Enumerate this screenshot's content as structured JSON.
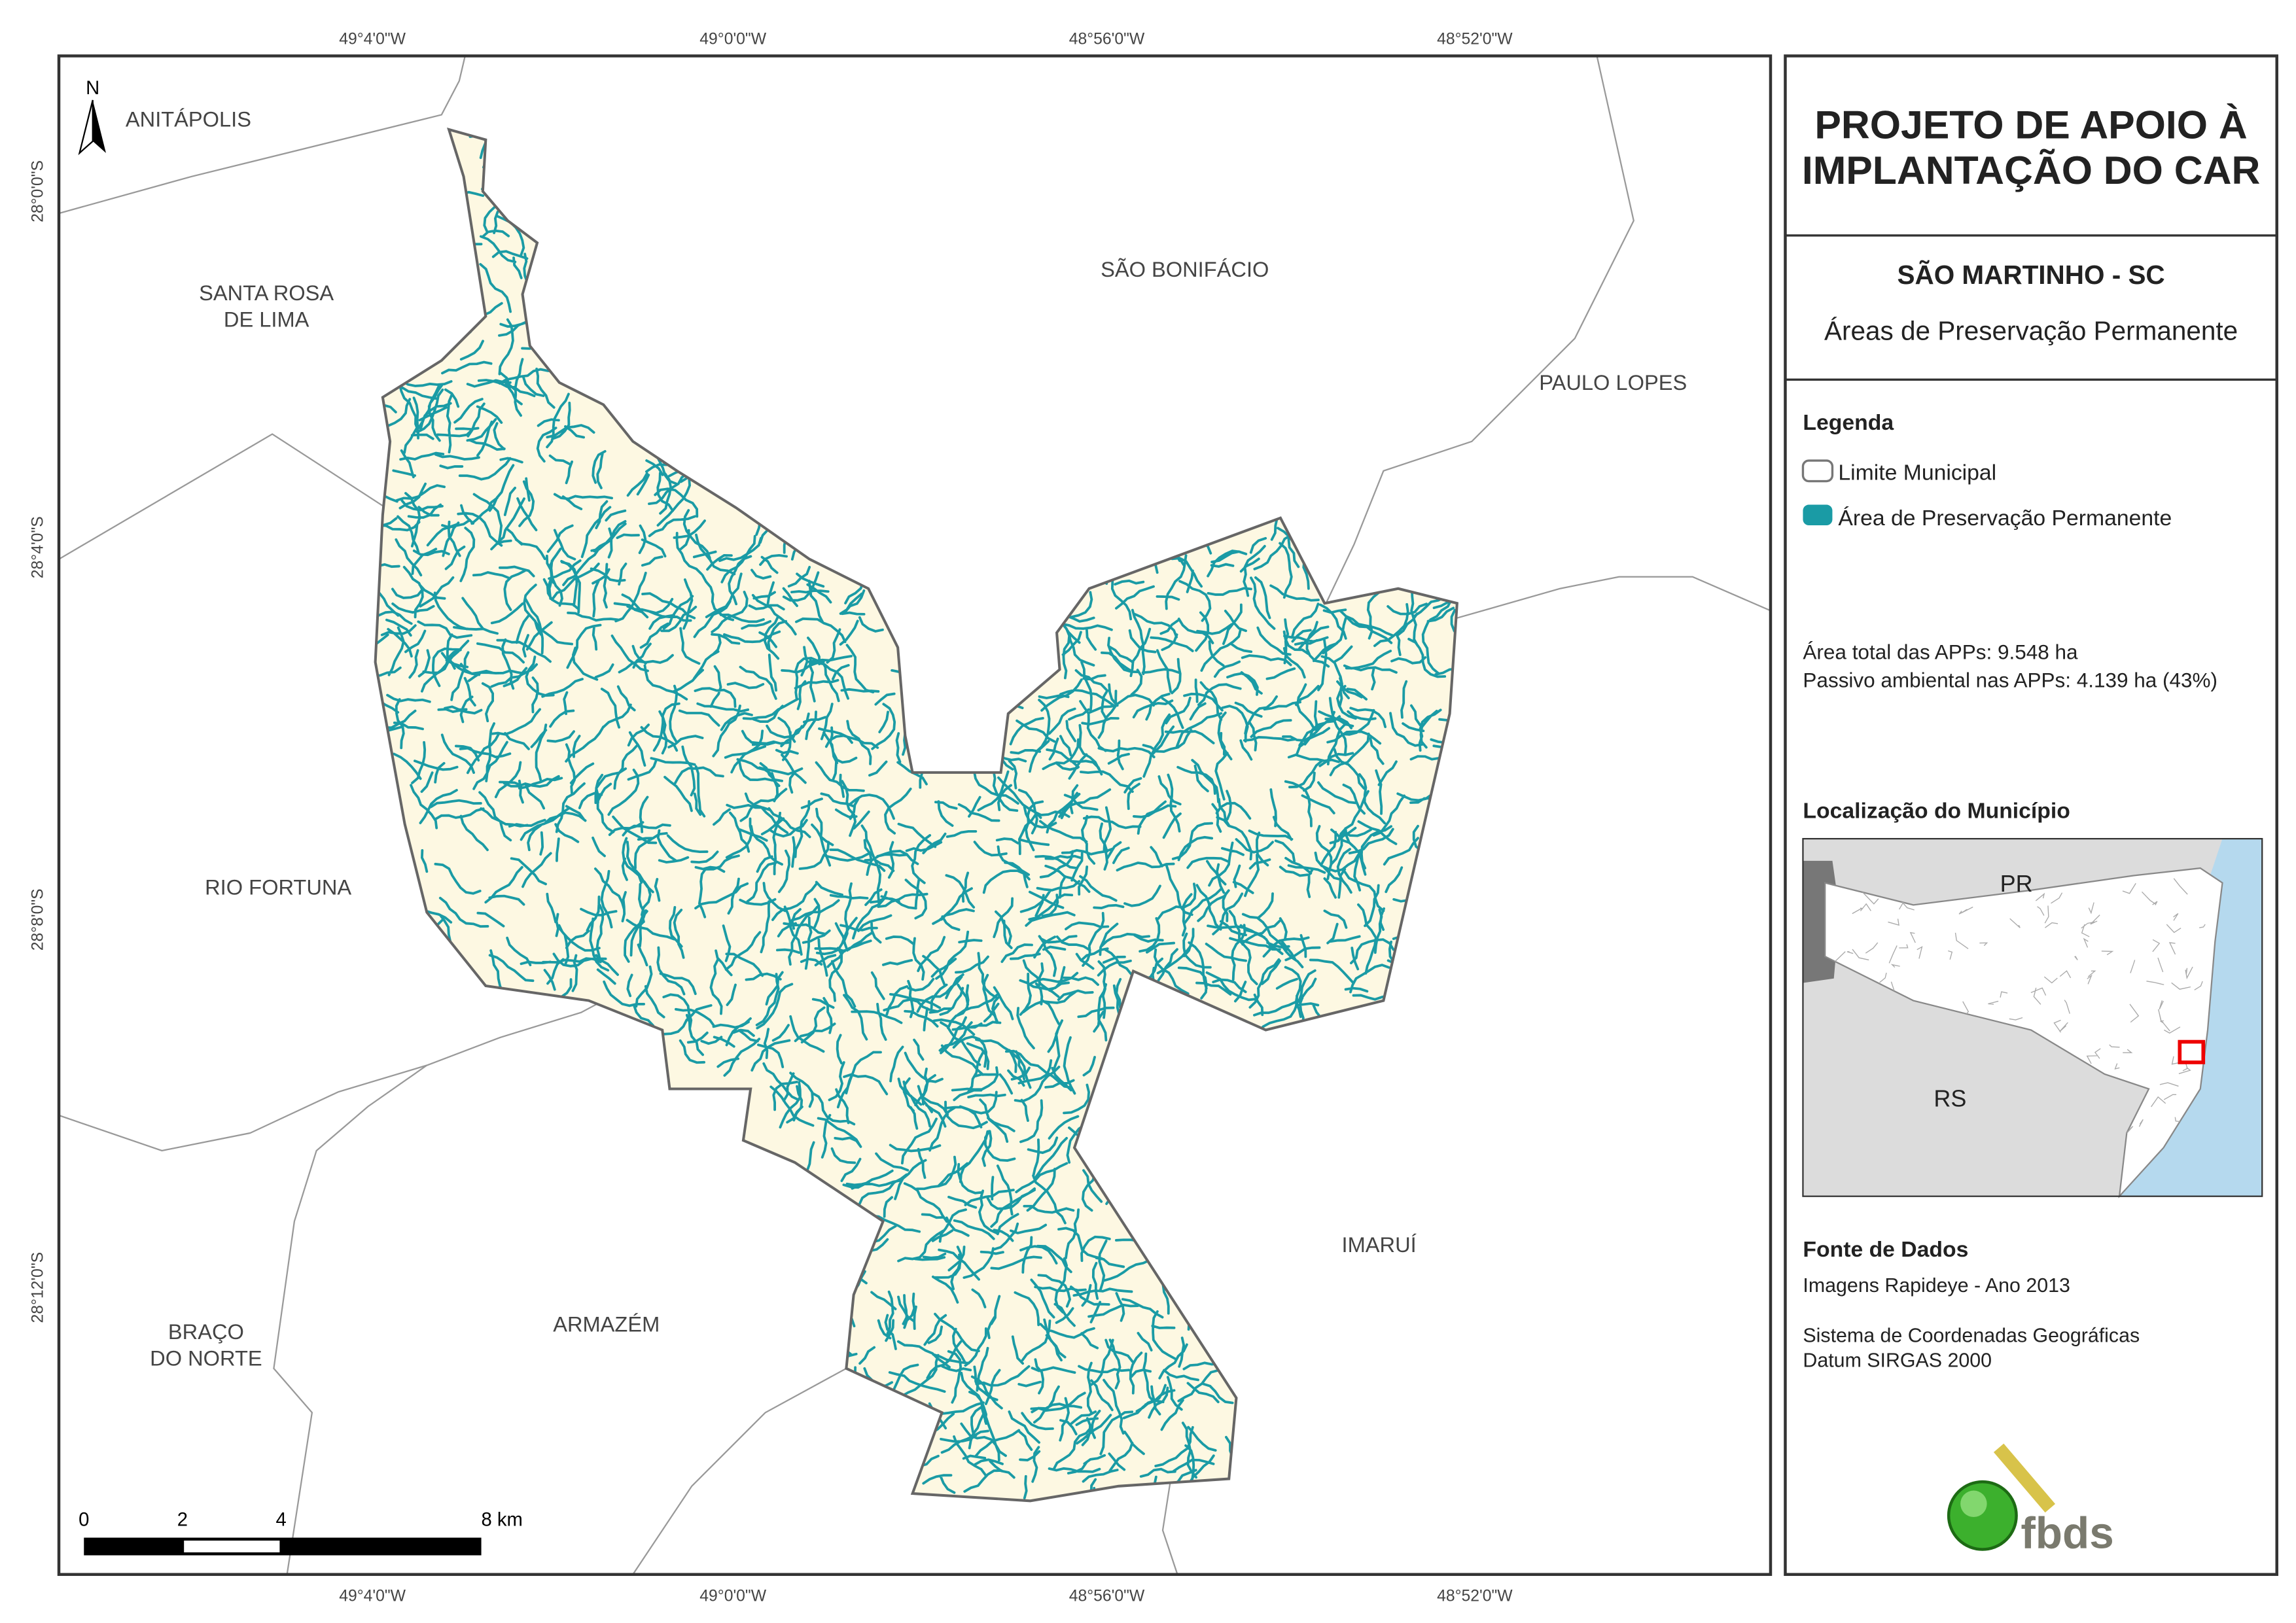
{
  "title": [
    "PROJETO DE APOIO À",
    "IMPLANTAÇÃO DO CAR"
  ],
  "municipality": "SÃO MARTINHO - SC",
  "subtitle": "Áreas de Preservação Permanente",
  "legend": {
    "title": "Legenda",
    "items": [
      "Limite Municipal",
      "Área de Preservação Permanente"
    ]
  },
  "stats": [
    "Área total das APPs: 9.548 ha",
    "Passivo ambiental nas APPs: 4.139 ha (43%)"
  ],
  "location": {
    "title": "Localização do Município",
    "labels": [
      "PR",
      "RS"
    ]
  },
  "sources": {
    "title": "Fonte de Dados",
    "lines": [
      "Imagens Rapideye - Ano 2013",
      "Sistema de Coordenadas Geográficas",
      "Datum SIRGAS 2000"
    ]
  },
  "logo": "fbds",
  "map": {
    "north": "N",
    "longitudes": [
      "49°4'0\"W",
      "49°0'0\"W",
      "48°56'0\"W",
      "48°52'0\"W"
    ],
    "latitudes": [
      "28°0'0\"S",
      "28°4'0\"S",
      "28°8'0\"S",
      "28°12'0\"S"
    ],
    "places": [
      [
        "ANITÁPOLIS"
      ],
      [
        "SANTA ROSA",
        "DE LIMA"
      ],
      [
        "SÃO BONIFÁCIO"
      ],
      [
        "PAULO LOPES"
      ],
      [
        "RIO FORTUNA"
      ],
      [
        "IMARUÍ"
      ],
      [
        "ARMAZÉM"
      ],
      [
        "BRAÇO",
        "DO NORTE"
      ]
    ],
    "scale": [
      "0",
      "2",
      "4",
      "8 km"
    ]
  }
}
